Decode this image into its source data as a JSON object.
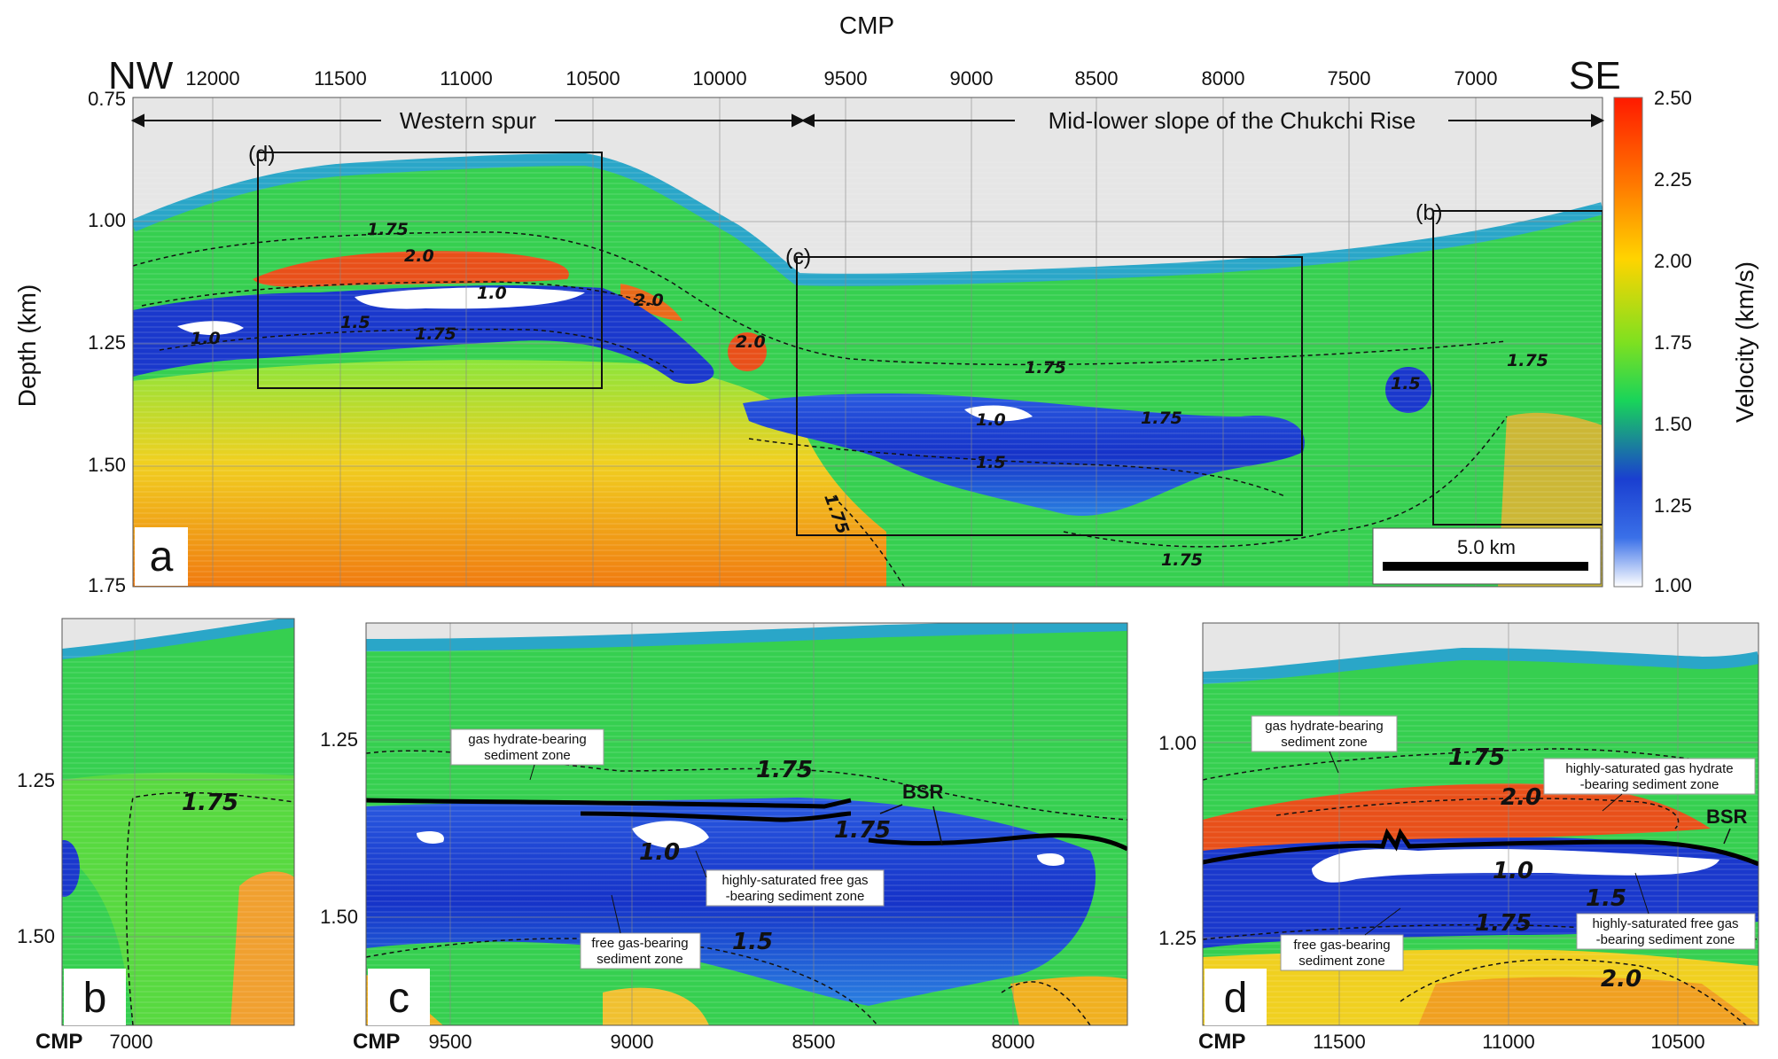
{
  "panel_a": {
    "top_axis_title": "CMP",
    "direction_left": "NW",
    "direction_right": "SE",
    "cmp_ticks": [
      "12000",
      "11500",
      "11000",
      "10500",
      "10000",
      "9500",
      "9000",
      "8500",
      "8000",
      "7500",
      "7000"
    ],
    "depth_ticks": [
      "0.75",
      "1.00",
      "1.25",
      "1.50",
      "1.75"
    ],
    "depth_label": "Depth (km)",
    "region_west": "Western spur",
    "region_east": "Mid-lower slope of the Chukchi Rise",
    "box_labels": {
      "b": "(b)",
      "c": "(c)",
      "d": "(d)"
    },
    "letter": "a",
    "scale_bar": "5.0 km",
    "contour_labels": {
      "c1": "1.75",
      "c2": "2.0",
      "c3": "1.0",
      "c4": "1.5",
      "c5": "1.75",
      "c6": "1.0",
      "c7": "2.0",
      "c8": "2.0",
      "c9": "1.75",
      "c10": "1.0",
      "c11": "1.75",
      "c12": "1.5",
      "c13": "1.75",
      "c14": "1.75",
      "c15": "1.5",
      "c16": "1.75"
    }
  },
  "colorbar": {
    "label": "Velocity (km/s)",
    "ticks": [
      "2.50",
      "2.25",
      "2.00",
      "1.75",
      "1.50",
      "1.25",
      "1.00"
    ],
    "colors": [
      "#ff1a00",
      "#ff7a00",
      "#ffd400",
      "#7fe020",
      "#19d45a",
      "#1a3fd0",
      "#ffffff"
    ]
  },
  "panel_b": {
    "letter": "b",
    "cmp_label": "CMP",
    "cmp_ticks": [
      "7000"
    ],
    "depth_ticks": [
      "1.25",
      "1.50"
    ],
    "contour": "1.75"
  },
  "panel_c": {
    "letter": "c",
    "cmp_label": "CMP",
    "cmp_ticks": [
      "9500",
      "9000",
      "8500",
      "8000"
    ],
    "depth_ticks": [
      "1.25",
      "1.50"
    ],
    "bsr": "BSR",
    "contours": {
      "a": "1.75",
      "b": "1.75",
      "c": "1.0",
      "d": "1.5"
    },
    "annotations": {
      "hydrate_l1": "gas hydrate-bearing",
      "hydrate_l2": "sediment zone",
      "freegas_hs_l1": "highly-saturated free gas",
      "freegas_hs_l2": "-bearing sediment zone",
      "freegas_l1": "free gas-bearing",
      "freegas_l2": "sediment zone"
    }
  },
  "panel_d": {
    "letter": "d",
    "cmp_label": "CMP",
    "cmp_ticks": [
      "11500",
      "11000",
      "10500"
    ],
    "depth_ticks": [
      "1.00",
      "1.25"
    ],
    "bsr": "BSR",
    "contours": {
      "a": "1.75",
      "b": "2.0",
      "c": "1.0",
      "d": "1.5",
      "e": "1.75",
      "f": "2.0"
    },
    "annotations": {
      "hydrate_l1": "gas hydrate-bearing",
      "hydrate_l2": "sediment zone",
      "hydrate_hs_l1": "highly-saturated gas hydrate",
      "hydrate_hs_l2": "-bearing sediment zone",
      "freegas_l1": "free gas-bearing",
      "freegas_l2": "sediment zone",
      "freegas_hs_l1": "highly-saturated free gas",
      "freegas_hs_l2": "-bearing sediment zone"
    }
  }
}
